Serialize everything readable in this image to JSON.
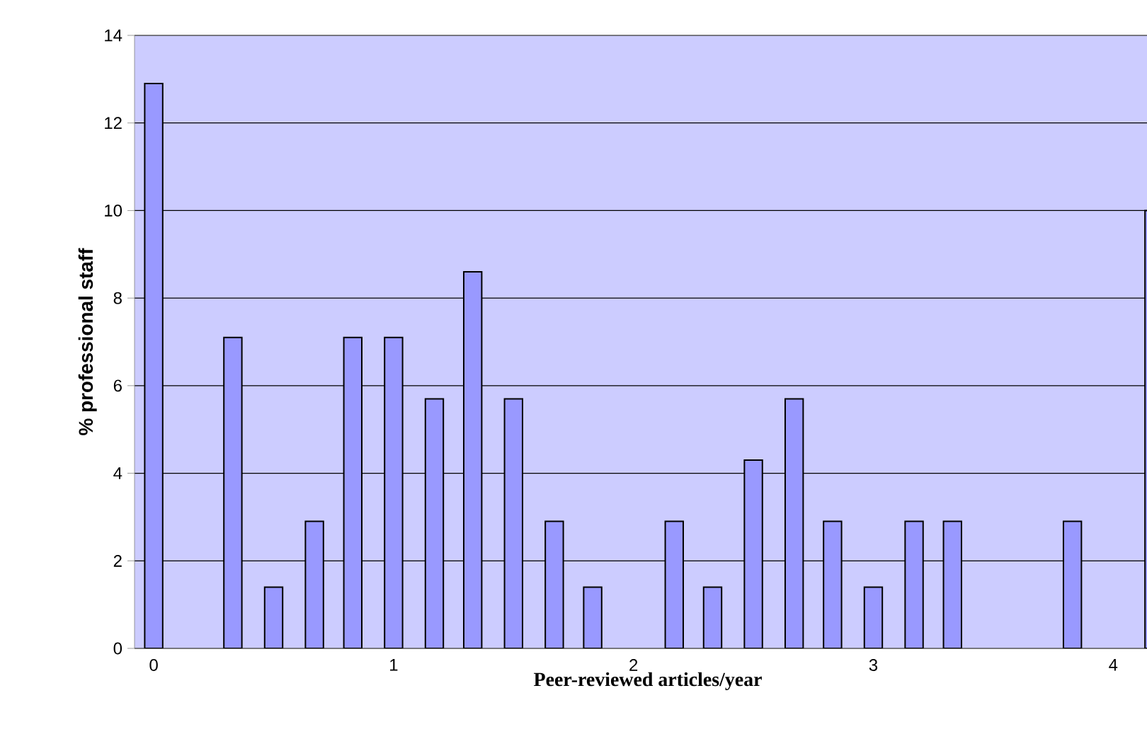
{
  "chart_data": {
    "type": "bar",
    "xlabel": "Peer-reviewed articles/year",
    "ylabel": "% professional staff",
    "x": [
      0,
      0.33,
      0.5,
      0.67,
      0.83,
      1,
      1.17,
      1.33,
      1.5,
      1.67,
      1.83,
      2.17,
      2.33,
      2.5,
      2.67,
      2.83,
      3,
      3.17,
      3.33,
      3.83,
      4.17
    ],
    "values": [
      12.9,
      7.1,
      1.4,
      2.9,
      7.1,
      7.1,
      5.7,
      8.6,
      5.7,
      2.9,
      1.4,
      2.9,
      1.4,
      4.3,
      5.7,
      2.9,
      1.4,
      2.9,
      2.9,
      2.9,
      10.0
    ],
    "color": "#9999ff",
    "xlim": [
      -0.08,
      4.2
    ],
    "xticks": [
      0,
      1,
      2,
      3,
      4
    ],
    "ylim": [
      0,
      14
    ],
    "yticks": [
      0,
      2,
      4,
      6,
      8,
      10,
      12,
      14
    ],
    "grid": "y"
  }
}
